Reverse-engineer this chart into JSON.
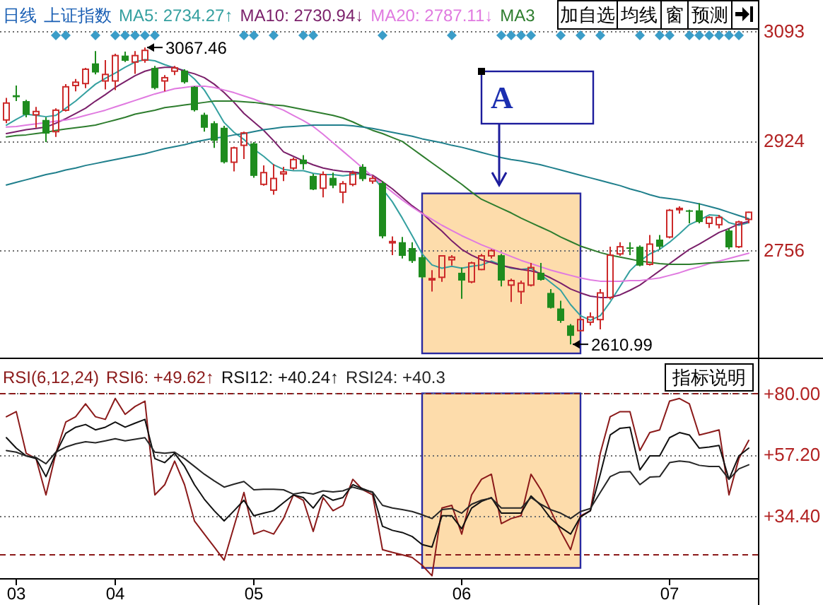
{
  "chart_data": [
    {
      "type": "candlestick",
      "title": "日线",
      "subtitle": "上证指数",
      "categories": [
        null,
        null,
        null,
        null,
        null,
        null,
        null,
        null,
        null,
        null,
        null,
        null,
        null,
        null,
        null,
        null,
        null,
        null,
        null,
        null,
        null,
        null,
        null,
        null,
        null,
        null,
        null,
        null,
        null,
        null,
        null,
        null,
        null,
        null,
        null,
        null,
        null,
        null,
        null,
        null,
        null,
        null,
        null,
        null,
        null,
        null,
        null,
        null,
        null,
        null,
        null,
        null,
        null,
        null,
        null,
        null,
        null,
        null,
        null,
        null,
        null,
        null,
        null,
        null,
        null,
        null,
        null,
        null,
        null,
        null,
        null,
        null,
        null,
        null,
        null,
        null
      ],
      "ohlc": [
        [
          2956,
          2990,
          2951,
          2982
        ],
        [
          2994,
          3009,
          2985,
          2991
        ],
        [
          2985,
          2987,
          2960,
          2964
        ],
        [
          2964,
          2976,
          2944,
          2969
        ],
        [
          2956,
          2960,
          2922,
          2935
        ],
        [
          2938,
          2974,
          2930,
          2971
        ],
        [
          2971,
          3011,
          2969,
          3007
        ],
        [
          3009,
          3019,
          3000,
          3014
        ],
        [
          3012,
          3036,
          3005,
          3034
        ],
        [
          3043,
          3062,
          3026,
          3029
        ],
        [
          3016,
          3048,
          3003,
          3026
        ],
        [
          3016,
          3058,
          3002,
          3055
        ],
        [
          3055,
          3061,
          3045,
          3047
        ],
        [
          3045,
          3062,
          3027,
          3055
        ],
        [
          3048,
          3067.46,
          3044,
          3063
        ],
        [
          3036,
          3039,
          3003,
          3005
        ],
        [
          3016,
          3025,
          3000,
          3021
        ],
        [
          3031,
          3039,
          3025,
          3036
        ],
        [
          3032,
          3034,
          3012,
          3014
        ],
        [
          3007,
          3008,
          2969,
          2971
        ],
        [
          2964,
          2967,
          2938,
          2944
        ],
        [
          2951,
          2954,
          2913,
          2924
        ],
        [
          2944,
          2947,
          2889,
          2891
        ],
        [
          2891,
          2915,
          2877,
          2913
        ],
        [
          2917,
          2938,
          2896,
          2936
        ],
        [
          2920,
          2922,
          2867,
          2870
        ],
        [
          2857,
          2886,
          2855,
          2875
        ],
        [
          2848,
          2888,
          2841,
          2866
        ],
        [
          2873,
          2884,
          2862,
          2876
        ],
        [
          2882,
          2898,
          2879,
          2895
        ],
        [
          2895,
          2902,
          2880,
          2888
        ],
        [
          2870,
          2873,
          2848,
          2849
        ],
        [
          2851,
          2877,
          2837,
          2872
        ],
        [
          2867,
          2875,
          2851,
          2855
        ],
        [
          2845,
          2862,
          2828,
          2858
        ],
        [
          2857,
          2878,
          2854,
          2874
        ],
        [
          2884,
          2888,
          2862,
          2865
        ],
        [
          2862,
          2870,
          2858,
          2866
        ],
        [
          2859,
          2862,
          2774,
          2777
        ],
        [
          2767,
          2777,
          2748,
          2769
        ],
        [
          2768,
          2776,
          2743,
          2747
        ],
        [
          2759,
          2768,
          2736,
          2739
        ],
        [
          2745,
          2748,
          2712,
          2714
        ],
        [
          2710,
          2725,
          2692,
          2712
        ],
        [
          2714,
          2748,
          2707,
          2747
        ],
        [
          2741,
          2748,
          2732,
          2745
        ],
        [
          2721,
          2729,
          2681,
          2709
        ],
        [
          2707,
          2738,
          2705,
          2736
        ],
        [
          2726,
          2750,
          2725,
          2747
        ],
        [
          2747,
          2757,
          2743,
          2755
        ],
        [
          2748,
          2750,
          2700,
          2709
        ],
        [
          2702,
          2712,
          2676,
          2709
        ],
        [
          2692,
          2709,
          2673,
          2705
        ],
        [
          2702,
          2736,
          2700,
          2729
        ],
        [
          2721,
          2736,
          2709,
          2710
        ],
        [
          2690,
          2696,
          2666,
          2667
        ],
        [
          2666,
          2678,
          2644,
          2647
        ],
        [
          2640,
          2642,
          2610.99,
          2624
        ],
        [
          2632,
          2653,
          2631,
          2649
        ],
        [
          2645,
          2660,
          2640,
          2653
        ],
        [
          2649,
          2696,
          2634,
          2690
        ],
        [
          2683,
          2761,
          2680,
          2748
        ],
        [
          2750,
          2768,
          2747,
          2761
        ],
        [
          2760,
          2768,
          2748,
          2759
        ],
        [
          2761,
          2763,
          2731,
          2732
        ],
        [
          2734,
          2779,
          2732,
          2765
        ],
        [
          2772,
          2779,
          2757,
          2761
        ],
        [
          2776,
          2819,
          2774,
          2817
        ],
        [
          2818,
          2823,
          2812,
          2820
        ],
        [
          2817,
          2818,
          2797,
          2815
        ],
        [
          2817,
          2828,
          2797,
          2799
        ],
        [
          2797,
          2808,
          2790,
          2806
        ],
        [
          2795,
          2810,
          2789,
          2806
        ],
        [
          2786,
          2789,
          2757,
          2760
        ],
        [
          2761,
          2801,
          2759,
          2799
        ],
        [
          2803,
          2815,
          2797,
          2814
        ]
      ],
      "colors": [
        "#cc2a2a",
        "#1e8c1e",
        "#1e8c1e",
        "#cc2a2a",
        "#1e8c1e",
        "#cc2a2a",
        "#cc2a2a",
        "#cc2a2a",
        "#cc2a2a",
        "#1e8c1e",
        "#cc2a2a",
        "#cc2a2a",
        "#1e8c1e",
        "#cc2a2a",
        "#cc2a2a",
        "#1e8c1e",
        "#cc2a2a",
        "#cc2a2a",
        "#1e8c1e",
        "#1e8c1e",
        "#1e8c1e",
        "#1e8c1e",
        "#1e8c1e",
        "#cc2a2a",
        "#cc2a2a",
        "#1e8c1e",
        "#cc2a2a",
        "#cc2a2a",
        "#cc2a2a",
        "#cc2a2a",
        "#1e8c1e",
        "#1e8c1e",
        "#cc2a2a",
        "#1e8c1e",
        "#cc2a2a",
        "#cc2a2a",
        "#1e8c1e",
        "#cc2a2a",
        "#1e8c1e",
        "#cc2a2a",
        "#1e8c1e",
        "#1e8c1e",
        "#1e8c1e",
        "#cc2a2a",
        "#cc2a2a",
        "#cc2a2a",
        "#1e8c1e",
        "#cc2a2a",
        "#cc2a2a",
        "#cc2a2a",
        "#1e8c1e",
        "#cc2a2a",
        "#cc2a2a",
        "#cc2a2a",
        "#1e8c1e",
        "#1e8c1e",
        "#1e8c1e",
        "#1e8c1e",
        "#cc2a2a",
        "#cc2a2a",
        "#cc2a2a",
        "#cc2a2a",
        "#cc2a2a",
        "#1e8c1e",
        "#1e8c1e",
        "#cc2a2a",
        "#1e8c1e",
        "#cc2a2a",
        "#cc2a2a",
        "#1e8c1e",
        "#1e8c1e",
        "#cc2a2a",
        "#cc2a2a",
        "#1e8c1e",
        "#cc2a2a",
        "#cc2a2a"
      ],
      "series": [
        {
          "name": "MA5: 2734.27↑",
          "type": "line",
          "color": "#35a0a0",
          "values": [
            2948,
            2957,
            2965,
            2963,
            2961,
            2963,
            2974,
            2985,
            2998,
            3011,
            3020,
            3028,
            3037,
            3045,
            3049,
            3047,
            3041,
            3036,
            3032,
            3019,
            3002,
            2978,
            2952,
            2937,
            2926,
            2911,
            2900,
            2887,
            2880,
            2878,
            2878,
            2874,
            2872,
            2872,
            2870,
            2872,
            2874,
            2870,
            2850,
            2830,
            2805,
            2778,
            2750,
            2733,
            2728,
            2731,
            2728,
            2731,
            2733,
            2739,
            2733,
            2728,
            2726,
            2728,
            2718,
            2706,
            2694,
            2672,
            2655,
            2648,
            2655,
            2676,
            2700,
            2724,
            2739,
            2750,
            2757,
            2768,
            2781,
            2795,
            2802,
            2810,
            2809,
            2798,
            2794,
            2798
          ]
        },
        {
          "name": "MA10: 2730.94↓",
          "type": "line",
          "color": "#7a1f6a",
          "values": [
            2935,
            2938,
            2941,
            2943,
            2945,
            2951,
            2958,
            2966,
            2974,
            2985,
            2995,
            3006,
            3015,
            3024,
            3031,
            3035,
            3037,
            3037,
            3031,
            3027,
            3021,
            3011,
            2998,
            2983,
            2966,
            2953,
            2940,
            2924,
            2907,
            2900,
            2893,
            2887,
            2882,
            2879,
            2877,
            2876,
            2874,
            2871,
            2861,
            2850,
            2837,
            2824,
            2813,
            2798,
            2785,
            2770,
            2757,
            2748,
            2741,
            2737,
            2732,
            2729,
            2726,
            2724,
            2720,
            2713,
            2705,
            2696,
            2690,
            2685,
            2683,
            2683,
            2687,
            2694,
            2702,
            2713,
            2724,
            2735,
            2746,
            2757,
            2765,
            2774,
            2783,
            2789,
            2796,
            2800
          ]
        },
        {
          "name": "MA20: 2787.11↓",
          "type": "line",
          "color": "#e07ae0",
          "values": [
            2945,
            2946,
            2948,
            2950,
            2952,
            2954,
            2956,
            2959,
            2963,
            2967,
            2971,
            2976,
            2981,
            2986,
            2991,
            2996,
            3000,
            3004,
            3006,
            3008,
            3008,
            3006,
            3002,
            2998,
            2993,
            2988,
            2982,
            2977,
            2971,
            2963,
            2955,
            2946,
            2934,
            2921,
            2908,
            2895,
            2882,
            2869,
            2857,
            2845,
            2833,
            2822,
            2812,
            2803,
            2794,
            2786,
            2778,
            2771,
            2764,
            2758,
            2752,
            2746,
            2740,
            2735,
            2730,
            2725,
            2721,
            2717,
            2713,
            2710,
            2708,
            2708,
            2708,
            2709,
            2709,
            2711,
            2713,
            2717,
            2721,
            2726,
            2730,
            2735,
            2739,
            2743,
            2747,
            2751
          ]
        },
        {
          "name": "MA3",
          "type": "line",
          "color": "#2e7d2e",
          "values": [
            2930,
            2932,
            2933,
            2935,
            2937,
            2940,
            2942,
            2944,
            2946,
            2948,
            2952,
            2956,
            2960,
            2965,
            2968,
            2971,
            2975,
            2977,
            2979,
            2981,
            2983,
            2985,
            2985,
            2985,
            2984,
            2983,
            2981,
            2979,
            2978,
            2975,
            2972,
            2969,
            2966,
            2963,
            2959,
            2953,
            2946,
            2940,
            2935,
            2929,
            2923,
            2912,
            2901,
            2890,
            2879,
            2868,
            2857,
            2845,
            2834,
            2827,
            2820,
            2813,
            2805,
            2798,
            2791,
            2784,
            2776,
            2769,
            2762,
            2757,
            2752,
            2748,
            2745,
            2742,
            2739,
            2737,
            2735,
            2734,
            2734,
            2734,
            2735,
            2736,
            2737,
            2738,
            2739,
            2740
          ]
        },
        {
          "type": "line",
          "color": "#1f7f8c",
          "values": [
            2856,
            2860,
            2864,
            2868,
            2872,
            2875,
            2879,
            2882,
            2886,
            2889,
            2892,
            2895,
            2898,
            2901,
            2904,
            2908,
            2912,
            2915,
            2918,
            2922,
            2925,
            2928,
            2930,
            2933,
            2935,
            2938,
            2941,
            2943,
            2945,
            2946,
            2947,
            2948,
            2948,
            2948,
            2948,
            2947,
            2945,
            2943,
            2940,
            2937,
            2934,
            2931,
            2927,
            2924,
            2921,
            2917,
            2914,
            2910,
            2906,
            2902,
            2898,
            2895,
            2893,
            2890,
            2887,
            2883,
            2879,
            2875,
            2871,
            2867,
            2863,
            2859,
            2855,
            2850,
            2846,
            2841,
            2837,
            2835,
            2833,
            2830,
            2827,
            2823,
            2819,
            2814,
            2809,
            2804
          ]
        }
      ],
      "ylim": [
        2597,
        3097
      ],
      "yticks": [
        3093,
        2924,
        2756
      ],
      "grid": "y",
      "tick_labels": "y",
      "legend": "top left",
      "annotations": [
        "3067.46",
        "2610.99",
        "A",
        "加自选",
        "均线",
        "窗",
        "预测"
      ]
    },
    {
      "type": "line",
      "title": "RSI(6,12,24)",
      "categories": [
        null,
        "03",
        null,
        null,
        null,
        null,
        null,
        null,
        null,
        null,
        null,
        "04",
        null,
        null,
        null,
        null,
        null,
        null,
        null,
        null,
        null,
        null,
        null,
        null,
        null,
        "05",
        null,
        null,
        null,
        null,
        null,
        null,
        null,
        null,
        null,
        null,
        null,
        null,
        null,
        null,
        null,
        null,
        null,
        null,
        null,
        null,
        "06",
        null,
        null,
        null,
        null,
        null,
        null,
        null,
        null,
        null,
        null,
        null,
        null,
        null,
        null,
        null,
        null,
        null,
        null,
        null,
        null,
        "07",
        null,
        null,
        null,
        null,
        null,
        null,
        null,
        null
      ],
      "series": [
        {
          "name": "RSI6: +49.62↑",
          "color": "#8b1a1a",
          "values": [
            71.3,
            73.2,
            57.7,
            55.7,
            42.2,
            57.7,
            69.3,
            71.3,
            76.1,
            71.3,
            70.3,
            78.1,
            72.2,
            75.1,
            77.1,
            42.2,
            46.0,
            54.8,
            46.0,
            32.5,
            27.6,
            22.8,
            17.9,
            30.5,
            43.1,
            27.6,
            29.0,
            27.6,
            33.4,
            42.2,
            40.2,
            28.6,
            41.2,
            36.3,
            38.3,
            48.0,
            44.1,
            42.2,
            21.8,
            20.8,
            19.9,
            18.9,
            16.0,
            12.1,
            37.3,
            38.3,
            27.6,
            42.2,
            48.0,
            49.9,
            31.5,
            33.4,
            34.4,
            49.9,
            44.1,
            36.3,
            28.6,
            21.8,
            34.4,
            36.3,
            57.7,
            71.3,
            73.2,
            73.2,
            58.7,
            65.4,
            66.4,
            77.1,
            78.1,
            76.1,
            64.5,
            65.4,
            66.4,
            42.2,
            55.7,
            62.5
          ]
        },
        {
          "name": "RSI12: +40.24↑",
          "color": "#111111",
          "values": [
            63.5,
            59.6,
            56.7,
            55.7,
            49.0,
            57.7,
            65.1,
            67.4,
            68.4,
            66.4,
            67.4,
            69.3,
            67.4,
            68.9,
            70.3,
            55.7,
            54.2,
            57.7,
            52.8,
            46.0,
            40.6,
            36.3,
            32.5,
            36.3,
            40.2,
            34.4,
            35.4,
            36.3,
            39.3,
            42.2,
            41.2,
            37.3,
            42.2,
            40.2,
            41.2,
            46.0,
            44.5,
            43.1,
            30.5,
            29.0,
            28.2,
            26.7,
            23.7,
            22.8,
            34.4,
            34.4,
            29.6,
            37.3,
            39.8,
            41.2,
            35.4,
            35.4,
            35.4,
            41.8,
            38.3,
            33.4,
            30.1,
            27.6,
            34.0,
            36.3,
            49.9,
            64.5,
            67.0,
            67.4,
            51.5,
            56.7,
            56.7,
            63.5,
            65.4,
            64.5,
            59.6,
            60.0,
            60.6,
            48.0,
            56.7,
            59.6
          ]
        },
        {
          "name": "RSI24: +40.3",
          "color": "#262626",
          "values": [
            58.7,
            58.1,
            56.7,
            56.1,
            53.8,
            58.1,
            60.0,
            61.2,
            62.0,
            61.6,
            62.3,
            63.1,
            62.3,
            62.9,
            63.5,
            58.1,
            57.7,
            58.1,
            55.7,
            52.8,
            49.9,
            47.4,
            45.1,
            46.2,
            47.2,
            44.1,
            44.3,
            44.3,
            44.1,
            42.5,
            43.1,
            42.5,
            43.7,
            43.3,
            43.7,
            45.1,
            44.1,
            43.3,
            38.3,
            37.3,
            36.7,
            36.0,
            34.8,
            33.4,
            36.7,
            37.1,
            35.4,
            38.7,
            40.2,
            41.0,
            37.3,
            37.3,
            37.3,
            41.2,
            38.7,
            36.7,
            35.4,
            33.4,
            36.0,
            37.1,
            43.1,
            49.0,
            50.7,
            50.9,
            46.0,
            48.8,
            49.0,
            54.2,
            54.8,
            54.4,
            53.2,
            52.8,
            52.8,
            48.0,
            51.9,
            53.4
          ]
        }
      ],
      "ylim": [
        11.2,
        93.3
      ],
      "yticks": [
        {
          "value": 80,
          "label": "+80.00"
        },
        {
          "value": 57.2,
          "label": "+57.20"
        },
        {
          "value": 34.4,
          "label": "+34.40"
        }
      ],
      "grid": "y",
      "ref_lines": [
        {
          "axis": "y",
          "value": 80,
          "color": "#8b1a1a",
          "line_style": "dashed"
        },
        {
          "axis": "y",
          "value": 20,
          "color": "#8b1a1a",
          "line_style": "dashed"
        }
      ],
      "legend": "top left",
      "annotations": [
        "指标说明"
      ]
    }
  ]
}
